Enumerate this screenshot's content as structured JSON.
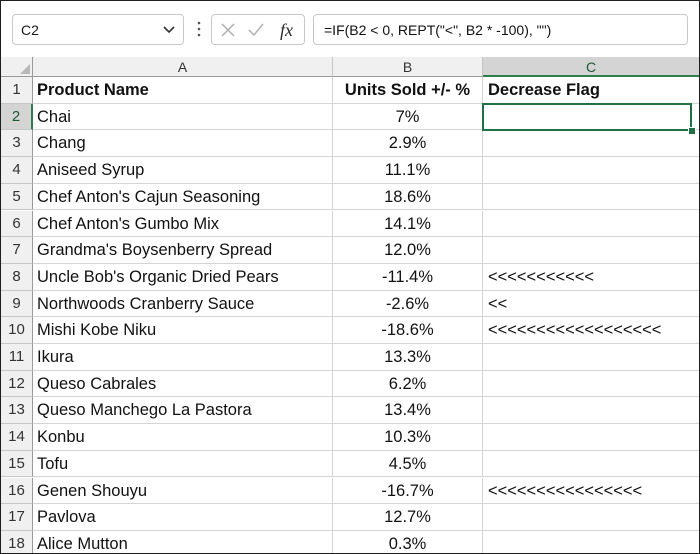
{
  "name_box": {
    "value": "C2"
  },
  "formula_bar": {
    "fx_label": "fx",
    "formula": "=IF(B2 < 0, REPT(\"<\", B2 * -100), \"\")"
  },
  "columns": [
    "A",
    "B",
    "C"
  ],
  "selected_column": "C",
  "selected_row": 2,
  "rows": [
    {
      "num": "1",
      "a": "Product Name",
      "b": "Units Sold +/- %",
      "c": "Decrease Flag"
    },
    {
      "num": "2",
      "a": "Chai",
      "b": "7%",
      "c": ""
    },
    {
      "num": "3",
      "a": "Chang",
      "b": "2.9%",
      "c": ""
    },
    {
      "num": "4",
      "a": "Aniseed Syrup",
      "b": "11.1%",
      "c": ""
    },
    {
      "num": "5",
      "a": "Chef Anton's Cajun Seasoning",
      "b": "18.6%",
      "c": ""
    },
    {
      "num": "6",
      "a": "Chef Anton's Gumbo Mix",
      "b": "14.1%",
      "c": ""
    },
    {
      "num": "7",
      "a": "Grandma's Boysenberry Spread",
      "b": "12.0%",
      "c": ""
    },
    {
      "num": "8",
      "a": "Uncle Bob's Organic Dried Pears",
      "b": "-11.4%",
      "c": "<<<<<<<<<<<"
    },
    {
      "num": "9",
      "a": "Northwoods Cranberry Sauce",
      "b": "-2.6%",
      "c": "<<"
    },
    {
      "num": "10",
      "a": "Mishi Kobe Niku",
      "b": "-18.6%",
      "c": "<<<<<<<<<<<<<<<<<<"
    },
    {
      "num": "11",
      "a": "Ikura",
      "b": "13.3%",
      "c": ""
    },
    {
      "num": "12",
      "a": "Queso Cabrales",
      "b": "6.2%",
      "c": ""
    },
    {
      "num": "13",
      "a": "Queso Manchego La Pastora",
      "b": "13.4%",
      "c": ""
    },
    {
      "num": "14",
      "a": "Konbu",
      "b": "10.3%",
      "c": ""
    },
    {
      "num": "15",
      "a": "Tofu",
      "b": "4.5%",
      "c": ""
    },
    {
      "num": "16",
      "a": "Genen Shouyu",
      "b": "-16.7%",
      "c": "<<<<<<<<<<<<<<<<"
    },
    {
      "num": "17",
      "a": "Pavlova",
      "b": "12.7%",
      "c": ""
    },
    {
      "num": "18",
      "a": "Alice Mutton",
      "b": "0.3%",
      "c": ""
    }
  ]
}
